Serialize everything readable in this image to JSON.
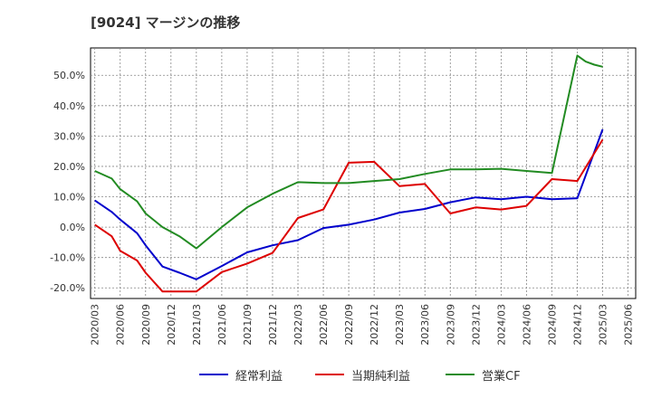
{
  "chart_data": {
    "type": "line",
    "title": "[9024]  マージンの推移",
    "xlabel": "",
    "ylabel": "",
    "ylim": [
      -0.235,
      0.59
    ],
    "yticks": [
      -0.2,
      -0.1,
      0.0,
      0.1,
      0.2,
      0.3,
      0.4,
      0.5
    ],
    "ytick_labels": [
      "-20.0%",
      "-10.0%",
      "0.0%",
      "10.0%",
      "20.0%",
      "30.0%",
      "40.0%",
      "50.0%"
    ],
    "x_tick_labels": [
      "2020/03",
      "2020/06",
      "2020/09",
      "2020/12",
      "2021/03",
      "2021/06",
      "2021/09",
      "2021/12",
      "2022/03",
      "2022/06",
      "2022/09",
      "2022/12",
      "2023/03",
      "2023/06",
      "2023/09",
      "2023/12",
      "2024/03",
      "2024/06",
      "2024/09",
      "2024/12",
      "2025/03",
      "2025/06"
    ],
    "x": [
      "2020/03",
      "2020/05",
      "2020/06",
      "2020/08",
      "2020/09",
      "2020/11",
      "2021/01",
      "2021/03",
      "2021/06",
      "2021/09",
      "2021/12",
      "2022/03",
      "2022/06",
      "2022/09",
      "2022/12",
      "2023/03",
      "2023/06",
      "2023/09",
      "2023/12",
      "2024/03",
      "2024/06",
      "2024/09",
      "2024/12",
      "2025/01",
      "2025/02",
      "2025/03"
    ],
    "grid": true,
    "legend_position": "bottom",
    "series": [
      {
        "name": "経常利益",
        "color": "#0000cc",
        "values": [
          0.088,
          0.05,
          0.025,
          -0.02,
          -0.06,
          -0.13,
          -0.15,
          -0.172,
          -0.128,
          -0.083,
          -0.06,
          -0.043,
          -0.003,
          0.008,
          0.025,
          0.048,
          0.06,
          0.082,
          0.098,
          0.092,
          0.1,
          0.092,
          0.095,
          null,
          null,
          0.322
        ]
      },
      {
        "name": "当期純利益",
        "color": "#dd0000",
        "values": [
          0.008,
          -0.03,
          -0.078,
          -0.11,
          -0.15,
          -0.212,
          -0.212,
          -0.212,
          -0.148,
          -0.12,
          -0.085,
          0.03,
          0.058,
          0.212,
          0.215,
          0.135,
          0.142,
          0.045,
          0.065,
          0.058,
          0.07,
          0.158,
          0.152,
          null,
          null,
          0.288
        ]
      },
      {
        "name": "営業CF",
        "color": "#228b22",
        "values": [
          0.185,
          0.16,
          0.125,
          0.085,
          0.045,
          0.0,
          -0.03,
          -0.07,
          0.0,
          0.065,
          0.11,
          0.148,
          0.145,
          0.145,
          0.152,
          0.158,
          0.175,
          0.19,
          0.19,
          0.192,
          0.185,
          0.178,
          0.565,
          0.545,
          0.535,
          0.528
        ]
      }
    ]
  }
}
